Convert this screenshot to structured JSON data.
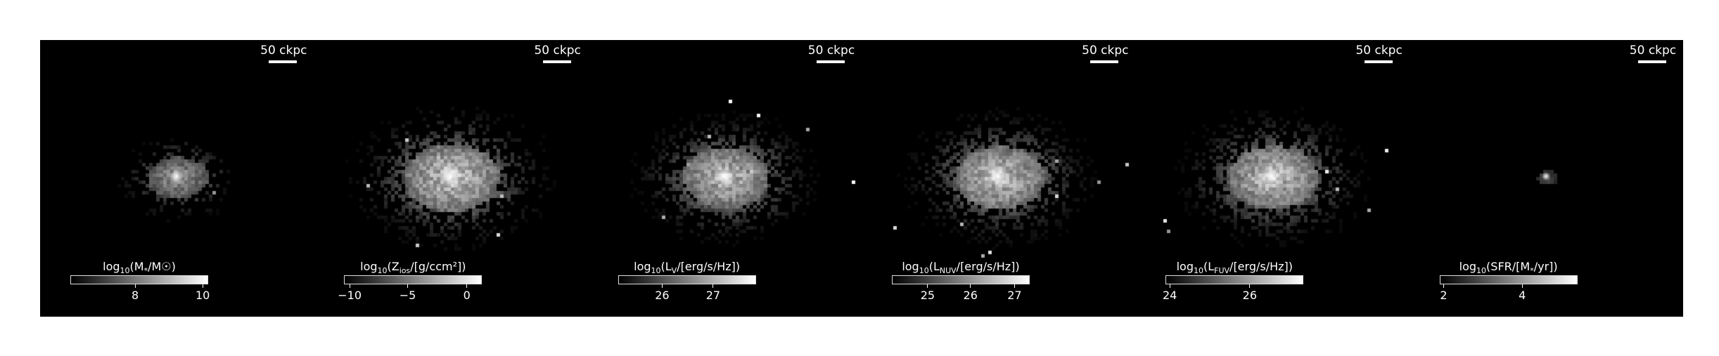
{
  "panels": [
    {
      "scale_label": "50 ckpc",
      "colorbar": {
        "prefix": "log",
        "sub": "10",
        "quantity": "(M",
        "quantity_sub": "*",
        "suffix": "/M☉)",
        "ticks": [
          {
            "label": "8",
            "frac": 0.47
          },
          {
            "label": "10",
            "frac": 0.96
          }
        ]
      },
      "blob": {
        "spread": 1.0,
        "density": 0.6,
        "peak": 0.95,
        "sparsity": 0.3
      }
    },
    {
      "scale_label": "50 ckpc",
      "colorbar": {
        "prefix": "log",
        "sub": "10",
        "quantity": "(Z",
        "quantity_sub": "ios",
        "suffix": "/[g/ccm²])",
        "ticks": [
          {
            "label": "−10",
            "frac": 0.04
          },
          {
            "label": "−5",
            "frac": 0.46
          },
          {
            "label": "0",
            "frac": 0.89
          }
        ]
      },
      "blob": {
        "spread": 1.6,
        "density": 0.85,
        "peak": 0.9,
        "sparsity": 0.55
      }
    },
    {
      "scale_label": "50 ckpc",
      "colorbar": {
        "prefix": "log",
        "sub": "10",
        "quantity": "(L",
        "quantity_sub": "V",
        "suffix": "/[erg/s/Hz])",
        "ticks": [
          {
            "label": "26",
            "frac": 0.32
          },
          {
            "label": "27",
            "frac": 0.69
          }
        ]
      },
      "blob": {
        "spread": 1.45,
        "density": 0.8,
        "peak": 0.92,
        "sparsity": 0.6
      }
    },
    {
      "scale_label": "50 ckpc",
      "colorbar": {
        "prefix": "log",
        "sub": "10",
        "quantity": "(L",
        "quantity_sub": "NUV",
        "suffix": "/[erg/s/Hz])",
        "ticks": [
          {
            "label": "25",
            "frac": 0.26
          },
          {
            "label": "26",
            "frac": 0.57
          },
          {
            "label": "27",
            "frac": 0.89
          }
        ]
      },
      "blob": {
        "spread": 1.5,
        "density": 0.82,
        "peak": 0.93,
        "sparsity": 0.62
      }
    },
    {
      "scale_label": "50 ckpc",
      "colorbar": {
        "prefix": "log",
        "sub": "10",
        "quantity": "(L",
        "quantity_sub": "FUV",
        "suffix": "/[erg/s/Hz])",
        "ticks": [
          {
            "label": "24",
            "frac": 0.03
          },
          {
            "label": "26",
            "frac": 0.61
          }
        ]
      },
      "blob": {
        "spread": 1.5,
        "density": 0.82,
        "peak": 0.93,
        "sparsity": 0.62
      }
    },
    {
      "scale_label": "50 ckpc",
      "colorbar": {
        "prefix": "log",
        "sub": "10",
        "quantity": "(SFR/[M",
        "quantity_sub": "*",
        "suffix": "/yr])",
        "ticks": [
          {
            "label": "2",
            "frac": 0.03
          },
          {
            "label": "4",
            "frac": 0.6
          }
        ]
      },
      "blob": {
        "spread": 0.35,
        "density": 0.3,
        "peak": 0.95,
        "sparsity": 0.1
      }
    }
  ]
}
